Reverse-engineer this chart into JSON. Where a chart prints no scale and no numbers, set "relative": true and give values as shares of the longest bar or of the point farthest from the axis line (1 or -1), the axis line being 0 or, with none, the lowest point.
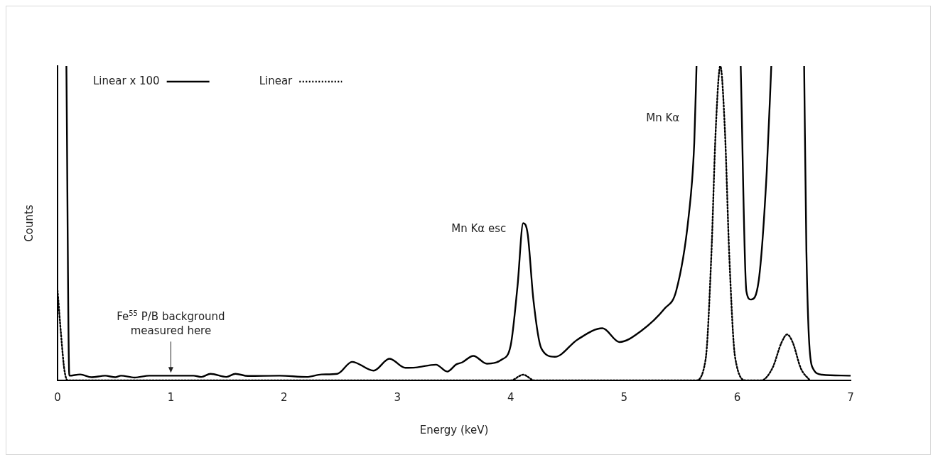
{
  "chart_data": {
    "type": "line",
    "relative": true,
    "xlabel": "Energy (keV)",
    "ylabel": "Counts",
    "xlim": [
      0,
      7
    ],
    "xticks": [
      0,
      1,
      2,
      3,
      4,
      5,
      6,
      7
    ],
    "legend": "top left",
    "grid": false,
    "marker": "none",
    "series": [
      {
        "name": "Linear x 100",
        "color": "#000000",
        "line_style": "solid",
        "x": [
          0.078,
          0.104,
          0.2,
          0.3,
          0.42,
          0.51,
          0.56,
          0.68,
          0.81,
          1.2,
          1.27,
          1.35,
          1.49,
          1.57,
          1.68,
          1.96,
          2.2,
          2.33,
          2.47,
          2.6,
          2.79,
          2.93,
          3.07,
          3.16,
          3.34,
          3.44,
          3.52,
          3.57,
          3.67,
          3.79,
          3.92,
          4.0,
          4.06,
          4.11,
          4.15,
          4.2,
          4.27,
          4.39,
          4.59,
          4.81,
          4.96,
          5.15,
          5.36,
          5.46,
          5.57,
          5.62,
          5.64,
          5.85,
          6.03,
          6.08,
          6.12,
          6.19,
          6.26,
          6.3,
          6.45,
          6.59,
          6.61,
          6.66,
          6.75,
          7.0
        ],
        "values": [
          1,
          0.015,
          0.019,
          0.01,
          0.015,
          0.01,
          0.015,
          0.009,
          0.015,
          0.015,
          0.011,
          0.021,
          0.011,
          0.021,
          0.014,
          0.015,
          0.011,
          0.019,
          0.021,
          0.059,
          0.031,
          0.069,
          0.04,
          0.041,
          0.05,
          0.028,
          0.051,
          0.057,
          0.078,
          0.053,
          0.066,
          0.112,
          0.3,
          0.5,
          0.465,
          0.257,
          0.102,
          0.075,
          0.13,
          0.166,
          0.122,
          0.157,
          0.229,
          0.284,
          0.52,
          0.755,
          1,
          null,
          1,
          0.284,
          0.257,
          0.32,
          0.665,
          1,
          null,
          1,
          0.41,
          0.044,
          0.018,
          0.015
        ]
      },
      {
        "name": "Linear",
        "color": "#000000",
        "line_style": "dotted",
        "x": [
          0,
          0.03,
          0.06,
          0.09,
          4.0,
          4.11,
          4.21,
          5.63,
          5.72,
          5.77,
          5.81,
          5.85,
          5.89,
          5.93,
          5.98,
          6.08,
          6.21,
          6.31,
          6.39,
          6.44,
          6.49,
          6.56,
          6.64
        ],
        "values": [
          0.286,
          0.149,
          0.034,
          0,
          0,
          0.018,
          0,
          0,
          0.066,
          0.39,
          0.8,
          1,
          0.8,
          0.39,
          0.075,
          0,
          0,
          0.039,
          0.12,
          0.146,
          0.12,
          0.039,
          0
        ]
      }
    ],
    "annotations": [
      {
        "text": "Mn Kα esc",
        "x": 4.11,
        "y": 0.5
      },
      {
        "text": "Mn Kα",
        "x": 5.64,
        "y": 0.85
      },
      {
        "text": "Fe$^{55}$ P/B background measured here",
        "x": 1,
        "y": 0.015
      }
    ]
  }
}
